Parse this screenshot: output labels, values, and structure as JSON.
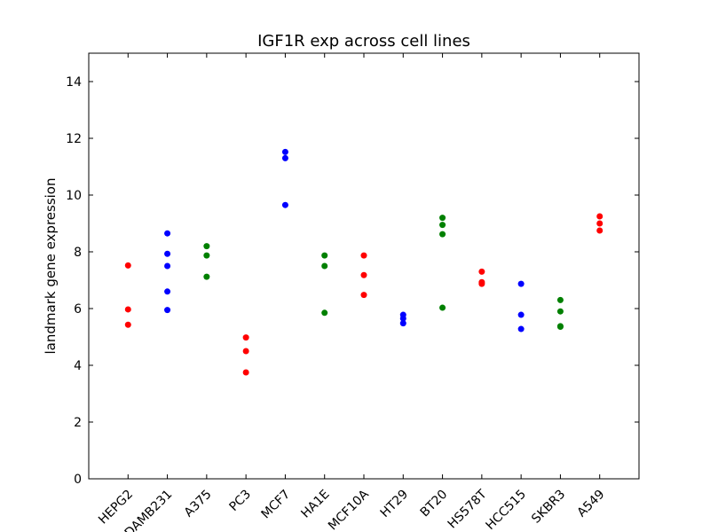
{
  "chart_data": {
    "type": "scatter",
    "title": "IGF1R exp across cell lines",
    "xlabel": "",
    "ylabel": "landmark gene expression",
    "ylim": [
      0,
      15
    ],
    "yticks": [
      0,
      2,
      4,
      6,
      8,
      10,
      12,
      14
    ],
    "categories": [
      "HEPG2",
      "MDAMB231",
      "A375",
      "PC3",
      "MCF7",
      "HA1E",
      "MCF10A",
      "HT29",
      "BT20",
      "HS578T",
      "HCC515",
      "SKBR3",
      "A549"
    ],
    "xlim": [
      -1,
      13
    ],
    "grid": false,
    "series": [
      {
        "category": "HEPG2",
        "color": "#ff0000",
        "values": [
          7.52,
          5.97,
          5.43
        ]
      },
      {
        "category": "MDAMB231",
        "color": "#0000ff",
        "values": [
          8.65,
          7.93,
          7.5,
          6.6,
          5.95
        ]
      },
      {
        "category": "A375",
        "color": "#008000",
        "values": [
          8.2,
          7.87,
          7.12
        ]
      },
      {
        "category": "PC3",
        "color": "#ff0000",
        "values": [
          4.98,
          4.5,
          3.75
        ]
      },
      {
        "category": "MCF7",
        "color": "#0000ff",
        "values": [
          11.52,
          11.3,
          9.65
        ]
      },
      {
        "category": "HA1E",
        "color": "#008000",
        "values": [
          7.87,
          7.5,
          5.85
        ]
      },
      {
        "category": "MCF10A",
        "color": "#ff0000",
        "values": [
          7.87,
          7.18,
          6.48
        ]
      },
      {
        "category": "HT29",
        "color": "#0000ff",
        "values": [
          5.78,
          5.65,
          5.48
        ]
      },
      {
        "category": "BT20",
        "color": "#008000",
        "values": [
          9.2,
          8.95,
          8.62,
          6.03
        ]
      },
      {
        "category": "HS578T",
        "color": "#ff0000",
        "values": [
          7.3,
          6.93,
          6.87
        ]
      },
      {
        "category": "HCC515",
        "color": "#0000ff",
        "values": [
          6.87,
          5.78,
          5.28
        ]
      },
      {
        "category": "SKBR3",
        "color": "#008000",
        "values": [
          6.3,
          5.9,
          5.38,
          5.36
        ]
      },
      {
        "category": "A549",
        "color": "#ff0000",
        "values": [
          9.25,
          9.0,
          8.75
        ]
      }
    ]
  }
}
